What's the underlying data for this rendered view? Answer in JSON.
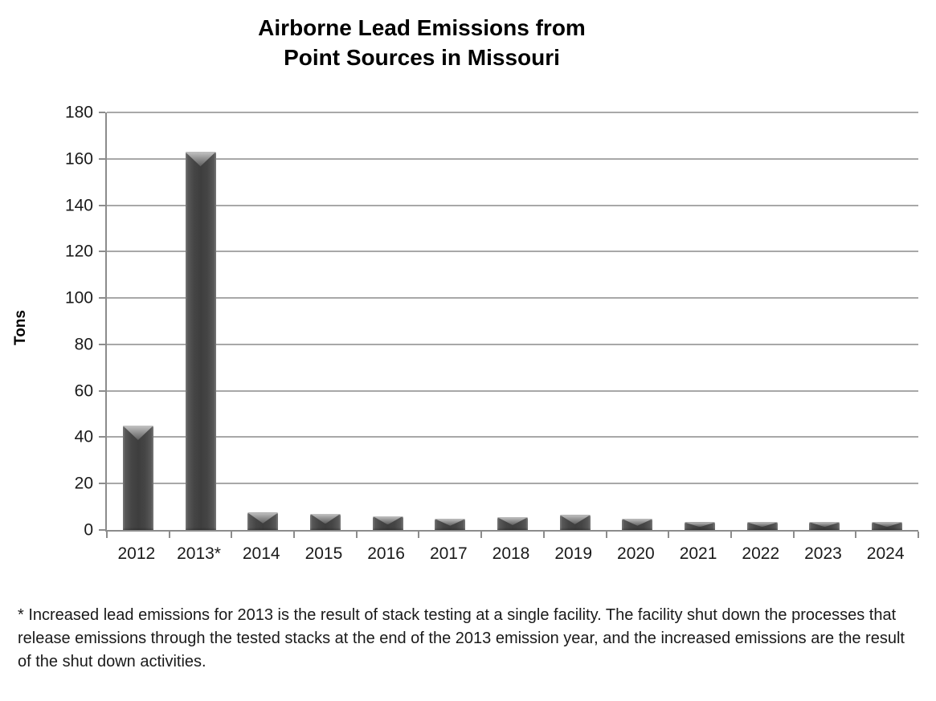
{
  "title": {
    "line1": "Airborne Lead Emissions from",
    "line2": "Point Sources in Missouri"
  },
  "chart_data": {
    "type": "bar",
    "title": "Airborne Lead Emissions from Point Sources in Missouri",
    "categories": [
      "2012",
      "2013*",
      "2014",
      "2015",
      "2016",
      "2017",
      "2018",
      "2019",
      "2020",
      "2021",
      "2022",
      "2023",
      "2024"
    ],
    "values": [
      45,
      163,
      7.5,
      7,
      6,
      4.8,
      5.5,
      6.5,
      4.8,
      3.3,
      3.4,
      3.4,
      3.4
    ],
    "xlabel": "",
    "ylabel": "Tons",
    "ylim": [
      0,
      180
    ],
    "yticks": [
      0,
      20,
      40,
      60,
      80,
      100,
      120,
      140,
      160,
      180
    ],
    "grid": true,
    "legend": null,
    "bar_color": "#3e3e3e",
    "gridline_color": "#a8a8a8",
    "axis_color": "#8c8c8c"
  },
  "footnote": "* Increased lead emissions for 2013 is the result of stack testing at a single facility. The facility shut down the processes that release emissions through the tested stacks at the end of the 2013 emission year, and the increased emissions are the result of the shut down activities."
}
